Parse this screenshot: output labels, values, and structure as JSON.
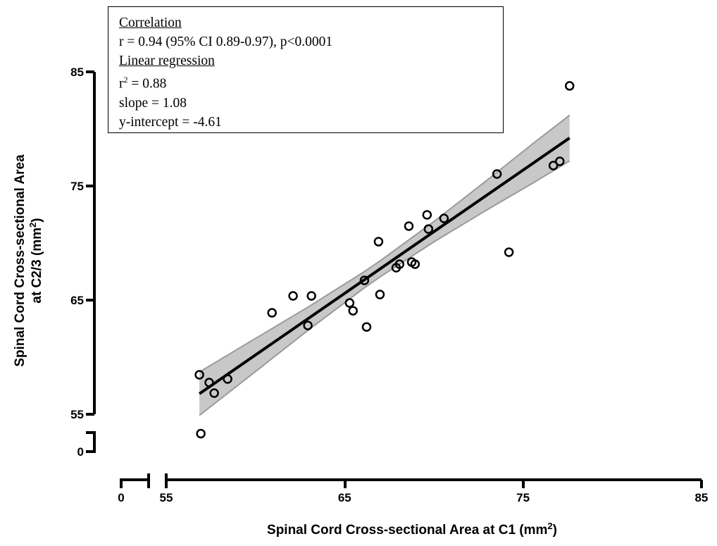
{
  "chart_data": {
    "type": "scatter",
    "xlabel": "Spinal Cord Cross-sectional Area at C1 (mm",
    "xlabel_sup": "2",
    "xlabel_end": ")",
    "ylabel_line1": "Spinal Cord Cross-sectional Area",
    "ylabel_line2": "at C2/3 (mm",
    "ylabel_sup": "2",
    "ylabel_end": ")",
    "xlim": [
      55,
      85
    ],
    "ylim": [
      55,
      85
    ],
    "axis_break": "both axes broken between 0 and 55",
    "x_ticks": [
      0,
      55,
      65,
      75,
      85
    ],
    "y_ticks": [
      0,
      55,
      65,
      75,
      85
    ],
    "points": [
      {
        "x": 56.86,
        "y": 58.46
      },
      {
        "x": 57.41,
        "y": 57.78
      },
      {
        "x": 57.69,
        "y": 56.85
      },
      {
        "x": 58.44,
        "y": 58.09
      },
      {
        "x": 56.94,
        "y": 53.3
      },
      {
        "x": 60.93,
        "y": 63.89
      },
      {
        "x": 62.11,
        "y": 65.37
      },
      {
        "x": 62.94,
        "y": 62.78
      },
      {
        "x": 63.14,
        "y": 65.37
      },
      {
        "x": 65.28,
        "y": 64.75
      },
      {
        "x": 65.47,
        "y": 64.07
      },
      {
        "x": 66.11,
        "y": 66.73
      },
      {
        "x": 66.23,
        "y": 62.65
      },
      {
        "x": 66.98,
        "y": 65.49
      },
      {
        "x": 66.9,
        "y": 70.12
      },
      {
        "x": 67.89,
        "y": 67.84
      },
      {
        "x": 68.08,
        "y": 68.15
      },
      {
        "x": 68.76,
        "y": 68.33
      },
      {
        "x": 68.95,
        "y": 68.15
      },
      {
        "x": 68.6,
        "y": 71.48
      },
      {
        "x": 69.62,
        "y": 72.47
      },
      {
        "x": 69.7,
        "y": 71.23
      },
      {
        "x": 70.57,
        "y": 72.16
      },
      {
        "x": 73.54,
        "y": 76.05
      },
      {
        "x": 74.21,
        "y": 69.2
      },
      {
        "x": 76.7,
        "y": 76.79
      },
      {
        "x": 77.06,
        "y": 77.16
      },
      {
        "x": 77.61,
        "y": 83.77
      }
    ],
    "regression": {
      "slope": 1.08,
      "intercept": -4.61,
      "x_range": [
        56.86,
        77.61
      ]
    },
    "confidence_band": {
      "x": [
        56.86,
        60,
        63,
        66,
        67,
        70,
        73,
        75.5,
        77.61
      ],
      "lower": [
        54.9,
        58.74,
        62.42,
        65.95,
        67.05,
        70.1,
        72.93,
        75.21,
        77.2
      ],
      "upper": [
        58.7,
        61.64,
        64.44,
        67.39,
        68.45,
        71.88,
        75.53,
        78.65,
        81.2
      ]
    },
    "colors": {
      "points": "#000000",
      "line": "#000000",
      "band": "#c8c8c8",
      "band_edge": "#9a9a9a"
    }
  },
  "stats_box": {
    "correlation_heading": "Correlation",
    "correlation_text": "r = 0.94 (95% CI 0.89-0.97), p<0.0001",
    "regression_heading": "Linear regression",
    "r2_label": "r",
    "r2_sup": "2",
    "r2_value": " = 0.88",
    "slope_text": "slope = 1.08",
    "intercept_text": "y-intercept = -4.61"
  }
}
